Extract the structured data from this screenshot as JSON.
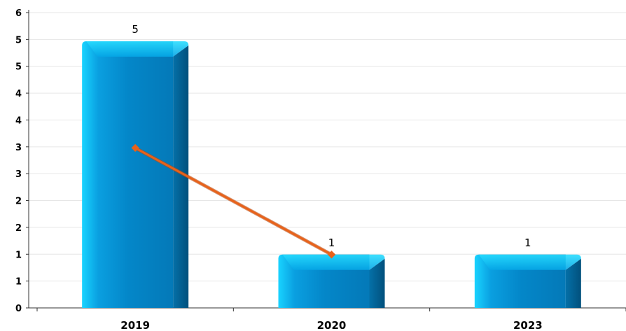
{
  "chart_data": {
    "type": "bar",
    "title": "",
    "xlabel": "",
    "ylabel": "",
    "categories": [
      "2019",
      "2020",
      "2023"
    ],
    "series": [
      {
        "kind": "bar",
        "values": [
          5,
          1,
          1
        ],
        "data_labels": [
          "5",
          "1",
          "1"
        ],
        "color": "#0a86c8"
      },
      {
        "kind": "line",
        "values": [
          3,
          1,
          null
        ],
        "color": "#e8621a"
      }
    ],
    "ylim": [
      0,
      5.5
    ],
    "y_tick_labels": [
      "0",
      "1",
      "1",
      "2",
      "2",
      "3",
      "3",
      "4",
      "4",
      "5",
      "5",
      "6"
    ],
    "grid": true,
    "legend": "none"
  }
}
